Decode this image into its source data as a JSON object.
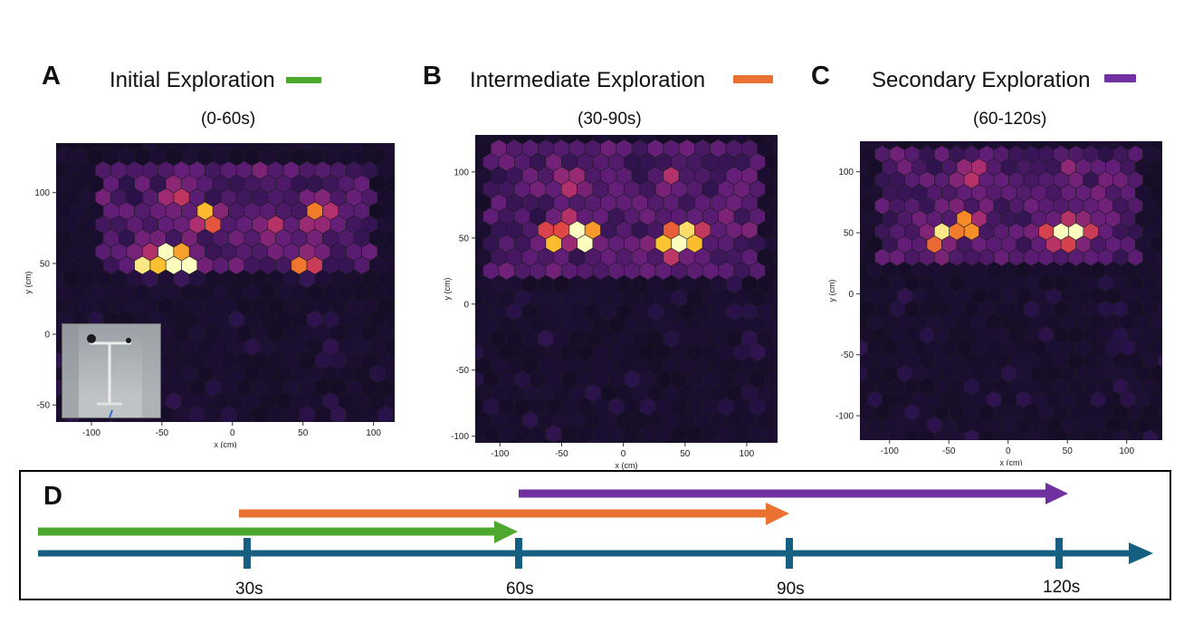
{
  "panels": [
    {
      "letter": "A",
      "title": "Initial Exploration",
      "subtitle": "(0-60s)",
      "color": "#4ea72e"
    },
    {
      "letter": "B",
      "title": "Intermediate Exploration",
      "subtitle": "(30-90s)",
      "color": "#e97132"
    },
    {
      "letter": "C",
      "title": "Secondary Exploration",
      "subtitle": "(60-120s)",
      "color": "#7030a0"
    }
  ],
  "timeline": {
    "letter": "D",
    "axis_color": "#156082",
    "ticks": [
      "30s",
      "60s",
      "90s",
      "120s"
    ]
  },
  "chart_data": [
    {
      "type": "heatmap",
      "title": "Initial Exploration",
      "subtitle": "(0-60s)",
      "xlabel": "x (cm)",
      "ylabel": "y (cm)",
      "xlim": [
        -125,
        115
      ],
      "ylim": [
        -62,
        135
      ],
      "xticks": [
        -100,
        -50,
        0,
        50,
        100
      ],
      "yticks": [
        -50,
        0,
        50,
        100
      ],
      "background": "#070707",
      "inset": "photo of arena with T-shaped stand",
      "hotspots": [
        {
          "x": -35,
          "y": 50,
          "intensity": 1.0
        },
        {
          "x": -45,
          "y": 55,
          "intensity": 0.85
        },
        {
          "x": -60,
          "y": 50,
          "intensity": 0.8
        },
        {
          "x": -18,
          "y": 83,
          "intensity": 0.65
        },
        {
          "x": 50,
          "y": 48,
          "intensity": 0.6
        },
        {
          "x": -40,
          "y": 100,
          "intensity": 0.4
        },
        {
          "x": 60,
          "y": 85,
          "intensity": 0.45
        },
        {
          "x": 25,
          "y": 75,
          "intensity": 0.3
        }
      ]
    },
    {
      "type": "heatmap",
      "title": "Intermediate Exploration",
      "subtitle": "(30-90s)",
      "xlabel": "x (cm)",
      "ylabel": "y (cm)",
      "xlim": [
        -120,
        125
      ],
      "ylim": [
        -105,
        128
      ],
      "xticks": [
        -100,
        -50,
        0,
        50,
        100
      ],
      "yticks": [
        -100,
        -50,
        0,
        50,
        100
      ],
      "background": "#070707",
      "hotspots": [
        {
          "x": -30,
          "y": 50,
          "intensity": 1.0
        },
        {
          "x": -38,
          "y": 57,
          "intensity": 0.85
        },
        {
          "x": -57,
          "y": 50,
          "intensity": 0.8
        },
        {
          "x": 45,
          "y": 50,
          "intensity": 1.0
        },
        {
          "x": 57,
          "y": 50,
          "intensity": 0.75
        },
        {
          "x": 37,
          "y": 44,
          "intensity": 0.7
        },
        {
          "x": -45,
          "y": 95,
          "intensity": 0.4
        },
        {
          "x": 40,
          "y": 95,
          "intensity": 0.35
        }
      ]
    },
    {
      "type": "heatmap",
      "title": "Secondary Exploration",
      "subtitle": "(60-120s)",
      "xlabel": "x (cm)",
      "ylabel": "y (cm)",
      "xlim": [
        -125,
        130
      ],
      "ylim": [
        -120,
        125
      ],
      "xticks": [
        -100,
        -50,
        0,
        50,
        100
      ],
      "yticks": [
        -100,
        -50,
        0,
        50,
        100
      ],
      "background": "#070707",
      "hotspots": [
        {
          "x": -33,
          "y": 57,
          "intensity": 0.85
        },
        {
          "x": -50,
          "y": 50,
          "intensity": 0.65
        },
        {
          "x": -60,
          "y": 45,
          "intensity": 0.55
        },
        {
          "x": 52,
          "y": 50,
          "intensity": 1.0
        },
        {
          "x": 40,
          "y": 50,
          "intensity": 0.8
        },
        {
          "x": 63,
          "y": 50,
          "intensity": 0.65
        },
        {
          "x": -30,
          "y": 100,
          "intensity": 0.35
        },
        {
          "x": 55,
          "y": 100,
          "intensity": 0.3
        }
      ]
    }
  ]
}
